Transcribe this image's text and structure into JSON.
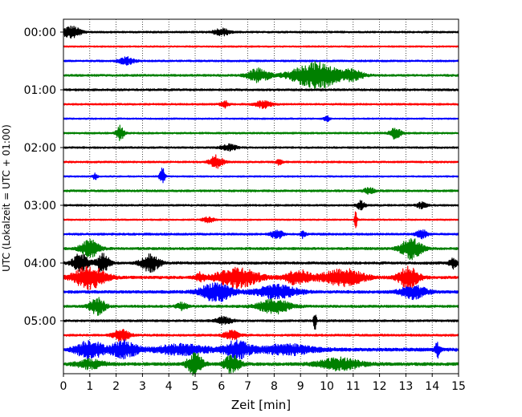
{
  "chart_data": {
    "type": "line",
    "title": "",
    "xlabel": "Zeit  [min]",
    "ylabel": "UTC (Lokalzeit = UTC + 01:00)",
    "xlim": [
      0,
      15
    ],
    "x_ticks": [
      0,
      1,
      2,
      3,
      4,
      5,
      6,
      7,
      8,
      9,
      10,
      11,
      12,
      13,
      14,
      15
    ],
    "y_ticks": [
      "00:00",
      "01:00",
      "02:00",
      "03:00",
      "04:00",
      "05:00"
    ],
    "grid": "vertical dotted",
    "trace_minutes": 15,
    "colors": [
      "#000000",
      "#ff0000",
      "#0000ff",
      "#008000"
    ],
    "series": [
      {
        "row": 0,
        "start": "00:00",
        "color": "#000000",
        "noise": 0.12,
        "events": [
          [
            0.3,
            0.35,
            0.8
          ],
          [
            6,
            0.3,
            0.5
          ]
        ]
      },
      {
        "row": 1,
        "start": "00:15",
        "color": "#ff0000",
        "noise": 0.1,
        "events": []
      },
      {
        "row": 2,
        "start": "00:30",
        "color": "#0000ff",
        "noise": 0.12,
        "events": [
          [
            2.4,
            0.3,
            0.5
          ]
        ]
      },
      {
        "row": 3,
        "start": "00:45",
        "color": "#008000",
        "noise": 0.14,
        "events": [
          [
            7.4,
            0.4,
            0.9
          ],
          [
            9.6,
            0.9,
            1.8
          ],
          [
            11.0,
            0.4,
            0.6
          ]
        ]
      },
      {
        "row": 4,
        "start": "01:00",
        "color": "#000000",
        "noise": 0.14,
        "events": []
      },
      {
        "row": 5,
        "start": "01:15",
        "color": "#ff0000",
        "noise": 0.12,
        "events": [
          [
            7.6,
            0.3,
            0.5
          ],
          [
            6.1,
            0.15,
            0.5
          ]
        ]
      },
      {
        "row": 6,
        "start": "01:30",
        "color": "#0000ff",
        "noise": 0.1,
        "events": [
          [
            10,
            0.1,
            0.5
          ]
        ]
      },
      {
        "row": 7,
        "start": "01:45",
        "color": "#008000",
        "noise": 0.12,
        "events": [
          [
            2.15,
            0.15,
            1.0
          ],
          [
            12.6,
            0.2,
            0.8
          ]
        ]
      },
      {
        "row": 8,
        "start": "02:00",
        "color": "#000000",
        "noise": 0.12,
        "events": [
          [
            6.3,
            0.3,
            0.4
          ]
        ]
      },
      {
        "row": 9,
        "start": "02:15",
        "color": "#ff0000",
        "noise": 0.12,
        "events": [
          [
            5.8,
            0.25,
            0.9
          ],
          [
            8.2,
            0.1,
            0.5
          ]
        ]
      },
      {
        "row": 10,
        "start": "02:30",
        "color": "#0000ff",
        "noise": 0.1,
        "events": [
          [
            3.75,
            0.1,
            1.2
          ],
          [
            1.2,
            0.1,
            0.4
          ]
        ]
      },
      {
        "row": 11,
        "start": "02:45",
        "color": "#008000",
        "noise": 0.14,
        "events": [
          [
            11.6,
            0.2,
            0.4
          ]
        ]
      },
      {
        "row": 12,
        "start": "03:00",
        "color": "#000000",
        "noise": 0.12,
        "events": [
          [
            11.3,
            0.15,
            0.6
          ],
          [
            13.6,
            0.2,
            0.4
          ]
        ]
      },
      {
        "row": 13,
        "start": "03:15",
        "color": "#ff0000",
        "noise": 0.1,
        "events": [
          [
            11.1,
            0.05,
            1.2
          ],
          [
            5.5,
            0.2,
            0.4
          ]
        ]
      },
      {
        "row": 14,
        "start": "03:30",
        "color": "#0000ff",
        "noise": 0.14,
        "events": [
          [
            8.1,
            0.2,
            0.7
          ],
          [
            9.1,
            0.1,
            0.5
          ],
          [
            13.6,
            0.2,
            0.6
          ]
        ]
      },
      {
        "row": 15,
        "start": "03:45",
        "color": "#008000",
        "noise": 0.16,
        "events": [
          [
            1.0,
            0.35,
            1.2
          ],
          [
            13.2,
            0.4,
            1.4
          ]
        ]
      },
      {
        "row": 16,
        "start": "04:00",
        "color": "#000000",
        "noise": 0.16,
        "events": [
          [
            0.65,
            0.3,
            1.3
          ],
          [
            1.5,
            0.25,
            1.3
          ],
          [
            3.3,
            0.35,
            1.2
          ],
          [
            14.8,
            0.15,
            0.7
          ]
        ]
      },
      {
        "row": 17,
        "start": "04:15",
        "color": "#ff0000",
        "noise": 0.18,
        "events": [
          [
            1.0,
            0.6,
            1.6
          ],
          [
            6.6,
            0.8,
            1.4
          ],
          [
            8.9,
            0.5,
            1.0
          ],
          [
            10.6,
            0.8,
            1.2
          ],
          [
            13.1,
            0.4,
            1.4
          ],
          [
            5.2,
            0.2,
            0.6
          ]
        ]
      },
      {
        "row": 18,
        "start": "04:30",
        "color": "#0000ff",
        "noise": 0.18,
        "events": [
          [
            5.8,
            0.6,
            1.3
          ],
          [
            8.1,
            0.8,
            0.9
          ],
          [
            13.3,
            0.5,
            0.9
          ]
        ]
      },
      {
        "row": 19,
        "start": "04:45",
        "color": "#008000",
        "noise": 0.16,
        "events": [
          [
            1.3,
            0.3,
            1.1
          ],
          [
            8.0,
            0.6,
            1.0
          ],
          [
            4.5,
            0.2,
            0.5
          ]
        ]
      },
      {
        "row": 20,
        "start": "05:00",
        "color": "#000000",
        "noise": 0.14,
        "events": [
          [
            9.55,
            0.05,
            1.6
          ],
          [
            6.1,
            0.3,
            0.5
          ]
        ]
      },
      {
        "row": 21,
        "start": "05:15",
        "color": "#ff0000",
        "noise": 0.14,
        "events": [
          [
            2.2,
            0.3,
            0.8
          ],
          [
            6.4,
            0.3,
            0.6
          ]
        ]
      },
      {
        "row": 22,
        "start": "05:30",
        "color": "#0000ff",
        "noise": 0.22,
        "events": [
          [
            1.0,
            0.5,
            1.3
          ],
          [
            2.3,
            0.5,
            1.2
          ],
          [
            6.6,
            0.5,
            1.2
          ],
          [
            4.5,
            1.0,
            0.7
          ],
          [
            8.5,
            1.0,
            0.7
          ],
          [
            14.2,
            0.1,
            1.0
          ]
        ]
      },
      {
        "row": 23,
        "start": "05:45",
        "color": "#008000",
        "noise": 0.2,
        "events": [
          [
            5.0,
            0.3,
            1.5
          ],
          [
            6.4,
            0.3,
            1.2
          ],
          [
            10.5,
            0.8,
            0.8
          ],
          [
            1.0,
            0.5,
            0.6
          ]
        ]
      }
    ]
  }
}
